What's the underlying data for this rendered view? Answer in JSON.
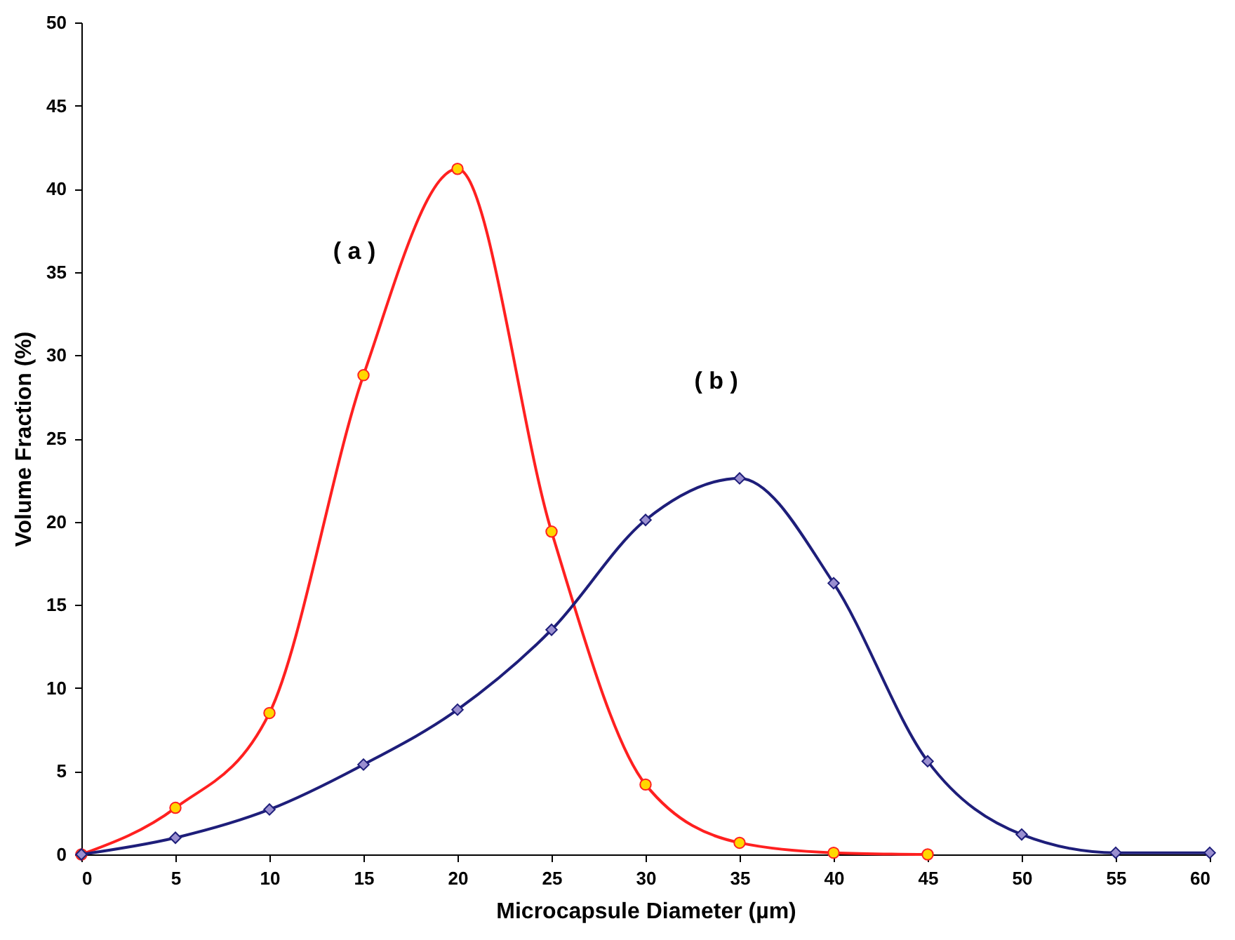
{
  "chart_data": {
    "type": "line",
    "xlabel": "Microcapsule Diameter   (µm)",
    "ylabel": "Volume Fraction (%)",
    "xlim": [
      0,
      60
    ],
    "xticks": [
      0,
      5,
      10,
      15,
      20,
      25,
      30,
      35,
      40,
      45,
      50,
      55,
      60
    ],
    "ylim": [
      0,
      50
    ],
    "yticks": [
      0,
      5,
      10,
      15,
      20,
      25,
      30,
      35,
      40,
      45,
      50
    ],
    "grid": false,
    "line_style": "solid",
    "series": [
      {
        "color": "#ff2020",
        "colors": [
          "#ffd700",
          "#ffd700",
          "#ffd700",
          "#ffd700",
          "#ffd700",
          "#ffd700",
          "#ffd700",
          "#ffd700",
          "#ffd700",
          "#ffd700"
        ],
        "marker": "circle",
        "x": [
          0,
          5,
          10,
          15,
          20,
          25,
          30,
          35,
          40,
          45
        ],
        "values": [
          0,
          2.8,
          8.5,
          28.8,
          41.2,
          19.4,
          4.2,
          0.7,
          0.1,
          0
        ]
      },
      {
        "color": "#1e1e7a",
        "colors": [
          "#9a8fd0",
          "#9a8fd0",
          "#9a8fd0",
          "#9a8fd0",
          "#9a8fd0",
          "#9a8fd0",
          "#9a8fd0",
          "#9a8fd0",
          "#9a8fd0",
          "#9a8fd0",
          "#9a8fd0",
          "#9a8fd0",
          "#9a8fd0"
        ],
        "marker": "diamond",
        "x": [
          0,
          5,
          10,
          15,
          20,
          25,
          30,
          35,
          40,
          45,
          50,
          55,
          60
        ],
        "values": [
          0,
          1.0,
          2.7,
          5.4,
          8.7,
          13.5,
          20.1,
          22.6,
          16.3,
          5.6,
          1.2,
          0.1,
          0.1
        ]
      }
    ],
    "annotations": [
      "( a )",
      "( b )"
    ]
  }
}
